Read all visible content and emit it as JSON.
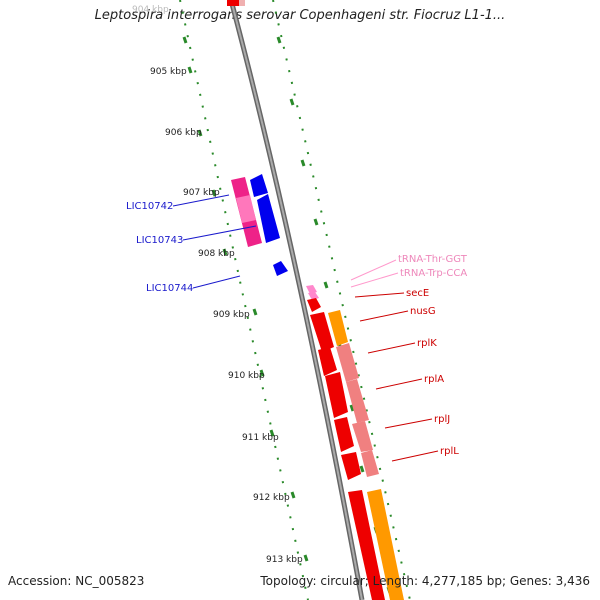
{
  "title": "Leptospira interrogans serovar Copenhageni str. Fiocruz L1-1...",
  "accession_label": "Accession: NC_005823",
  "summary_label": "Topology: circular; Length: 4,277,185 bp; Genes: 3,436",
  "ruler_ticks": [
    {
      "label": "904 kbp",
      "faded": true
    },
    {
      "label": "905 kbp"
    },
    {
      "label": "906 kbp"
    },
    {
      "label": "907 kbp"
    },
    {
      "label": "908 kbp"
    },
    {
      "label": "909 kbp"
    },
    {
      "label": "910 kbp"
    },
    {
      "label": "911 kbp"
    },
    {
      "label": "912 kbp"
    },
    {
      "label": "913 kbp"
    }
  ],
  "gene_labels": [
    {
      "name": "LIC10742",
      "color": "#1a1acc"
    },
    {
      "name": "LIC10743",
      "color": "#1a1acc"
    },
    {
      "name": "LIC10744",
      "color": "#1a1acc"
    },
    {
      "name": "tRNA-Thr-GGT",
      "color": "#ee88bb"
    },
    {
      "name": "tRNA-Trp-CCA",
      "color": "#ee88bb"
    },
    {
      "name": "secE",
      "color": "#cc0000"
    },
    {
      "name": "nusG",
      "color": "#cc0000"
    },
    {
      "name": "rplK",
      "color": "#cc0000"
    },
    {
      "name": "rplA",
      "color": "#cc0000"
    },
    {
      "name": "rplJ",
      "color": "#cc0000"
    },
    {
      "name": "rplL",
      "color": "#cc0000"
    }
  ],
  "colors": {
    "backbone": "#888888",
    "ruler": "#2a8a2a",
    "plus_gene": "#0000ee",
    "minus_gene_pink": "#ee2288",
    "cds_red": "#ee0000",
    "cds_red_light": "#f08080",
    "cds_orange": "#ff9900",
    "trna_pink": "#ff88cc"
  }
}
